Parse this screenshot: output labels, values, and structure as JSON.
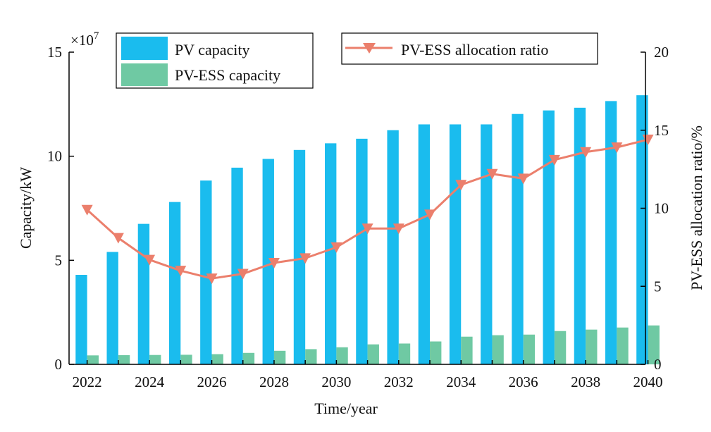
{
  "chart_data": {
    "type": "bar+line",
    "title": "",
    "xlabel": "Time/year",
    "ylabel_left": "Capacity/kW",
    "ylabel_right": "PV-ESS allocation ratio/%",
    "left_axis_multiplier": "×10",
    "left_axis_multiplier_exp": "7",
    "ylim_left": [
      0,
      15
    ],
    "ylim_right": [
      0,
      20
    ],
    "yticks_left": [
      "0",
      "5",
      "10",
      "15"
    ],
    "yticks_right": [
      "0",
      "5",
      "10",
      "15",
      "20"
    ],
    "categories": [
      2022,
      2023,
      2024,
      2025,
      2026,
      2027,
      2028,
      2029,
      2030,
      2031,
      2032,
      2033,
      2034,
      2035,
      2036,
      2037,
      2038,
      2039,
      2040
    ],
    "xtick_labels": [
      "2022",
      "2024",
      "2026",
      "2028",
      "2030",
      "2032",
      "2034",
      "2036",
      "2038",
      "2040"
    ],
    "series": [
      {
        "name": "PV capacity",
        "type": "bar",
        "axis": "left",
        "color": "#1ABCEE",
        "values": [
          4.3,
          5.4,
          6.75,
          7.8,
          8.83,
          9.45,
          9.87,
          10.3,
          10.62,
          10.84,
          11.25,
          11.53,
          11.53,
          11.53,
          12.03,
          12.2,
          12.33,
          12.65,
          12.93
        ]
      },
      {
        "name": "PV-ESS capacity",
        "type": "bar",
        "axis": "left",
        "color": "#6FC9A3",
        "values": [
          0.43,
          0.44,
          0.45,
          0.46,
          0.49,
          0.55,
          0.65,
          0.73,
          0.82,
          0.96,
          1.0,
          1.1,
          1.33,
          1.4,
          1.43,
          1.6,
          1.67,
          1.77,
          1.87
        ]
      },
      {
        "name": "PV-ESS allocation ratio",
        "type": "line",
        "axis": "right",
        "color": "#EB7F6C",
        "marker": "triangle-down",
        "values": [
          9.9,
          8.1,
          6.7,
          6.0,
          5.5,
          5.8,
          6.5,
          6.8,
          7.5,
          8.7,
          8.7,
          9.6,
          11.5,
          12.2,
          11.9,
          13.1,
          13.6,
          13.9,
          14.4
        ]
      }
    ],
    "legend": {
      "left_placement": "top-left",
      "right_placement": "top-right"
    }
  }
}
